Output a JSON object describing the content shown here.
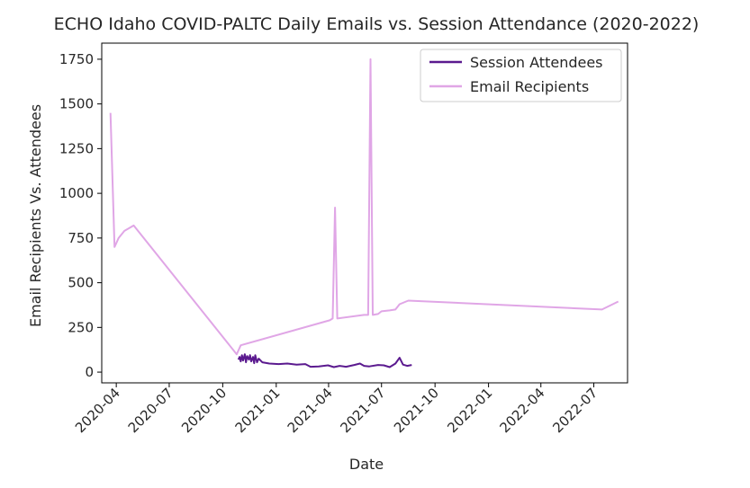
{
  "chart_data": {
    "type": "line",
    "title": "ECHO Idaho COVID-PALTC Daily Emails vs. Session Attendance (2020-2022)",
    "xlabel": "Date",
    "ylabel": "Email Recipients Vs. Attendees",
    "xlim": [
      "2020-03-07",
      "2022-08-28"
    ],
    "ylim": [
      -60,
      1840
    ],
    "xticks": [
      {
        "value": "2020-04-01",
        "label": "2020-04"
      },
      {
        "value": "2020-07-01",
        "label": "2020-07"
      },
      {
        "value": "2020-10-01",
        "label": "2020-10"
      },
      {
        "value": "2021-01-01",
        "label": "2021-01"
      },
      {
        "value": "2021-04-01",
        "label": "2021-04"
      },
      {
        "value": "2021-07-01",
        "label": "2021-07"
      },
      {
        "value": "2021-10-01",
        "label": "2021-10"
      },
      {
        "value": "2022-01-01",
        "label": "2022-01"
      },
      {
        "value": "2022-04-01",
        "label": "2022-04"
      },
      {
        "value": "2022-07-01",
        "label": "2022-07"
      }
    ],
    "yticks": [
      0,
      250,
      500,
      750,
      1000,
      1250,
      1500,
      1750
    ],
    "grid": false,
    "legend_position": "top-right",
    "series": [
      {
        "name": "Session Attendees",
        "color": "#5b1a8f",
        "points": [
          [
            "2020-10-28",
            70
          ],
          [
            "2020-10-30",
            85
          ],
          [
            "2020-11-01",
            60
          ],
          [
            "2020-11-03",
            95
          ],
          [
            "2020-11-05",
            65
          ],
          [
            "2020-11-08",
            100
          ],
          [
            "2020-11-10",
            55
          ],
          [
            "2020-11-12",
            90
          ],
          [
            "2020-11-15",
            70
          ],
          [
            "2020-11-17",
            95
          ],
          [
            "2020-11-19",
            60
          ],
          [
            "2020-11-22",
            85
          ],
          [
            "2020-11-24",
            50
          ],
          [
            "2020-11-26",
            95
          ],
          [
            "2020-11-29",
            55
          ],
          [
            "2020-12-02",
            75
          ],
          [
            "2020-12-08",
            55
          ],
          [
            "2020-12-20",
            48
          ],
          [
            "2021-01-05",
            45
          ],
          [
            "2021-01-20",
            48
          ],
          [
            "2021-02-05",
            42
          ],
          [
            "2021-02-20",
            45
          ],
          [
            "2021-03-01",
            30
          ],
          [
            "2021-03-15",
            32
          ],
          [
            "2021-03-31",
            38
          ],
          [
            "2021-04-10",
            28
          ],
          [
            "2021-04-20",
            35
          ],
          [
            "2021-05-01",
            30
          ],
          [
            "2021-05-15",
            40
          ],
          [
            "2021-05-25",
            48
          ],
          [
            "2021-06-01",
            35
          ],
          [
            "2021-06-10",
            32
          ],
          [
            "2021-06-25",
            40
          ],
          [
            "2021-07-05",
            38
          ],
          [
            "2021-07-15",
            28
          ],
          [
            "2021-07-25",
            48
          ],
          [
            "2021-08-01",
            80
          ],
          [
            "2021-08-07",
            42
          ],
          [
            "2021-08-14",
            35
          ],
          [
            "2021-08-22",
            40
          ]
        ]
      },
      {
        "name": "Email Recipients",
        "color": "#e0a6e6",
        "points": [
          [
            "2020-03-22",
            1450
          ],
          [
            "2020-03-29",
            700
          ],
          [
            "2020-04-05",
            750
          ],
          [
            "2020-04-15",
            790
          ],
          [
            "2020-05-01",
            820
          ],
          [
            "2020-10-25",
            100
          ],
          [
            "2020-11-01",
            150
          ],
          [
            "2021-04-03",
            290
          ],
          [
            "2021-04-08",
            300
          ],
          [
            "2021-04-12",
            920
          ],
          [
            "2021-04-16",
            300
          ],
          [
            "2021-06-01",
            320
          ],
          [
            "2021-06-08",
            320
          ],
          [
            "2021-06-12",
            1750
          ],
          [
            "2021-06-16",
            320
          ],
          [
            "2021-06-25",
            325
          ],
          [
            "2021-07-01",
            340
          ],
          [
            "2021-07-15",
            345
          ],
          [
            "2021-07-25",
            350
          ],
          [
            "2021-08-01",
            380
          ],
          [
            "2021-08-16",
            400
          ],
          [
            "2022-07-15",
            350
          ],
          [
            "2022-08-12",
            395
          ]
        ]
      }
    ]
  }
}
